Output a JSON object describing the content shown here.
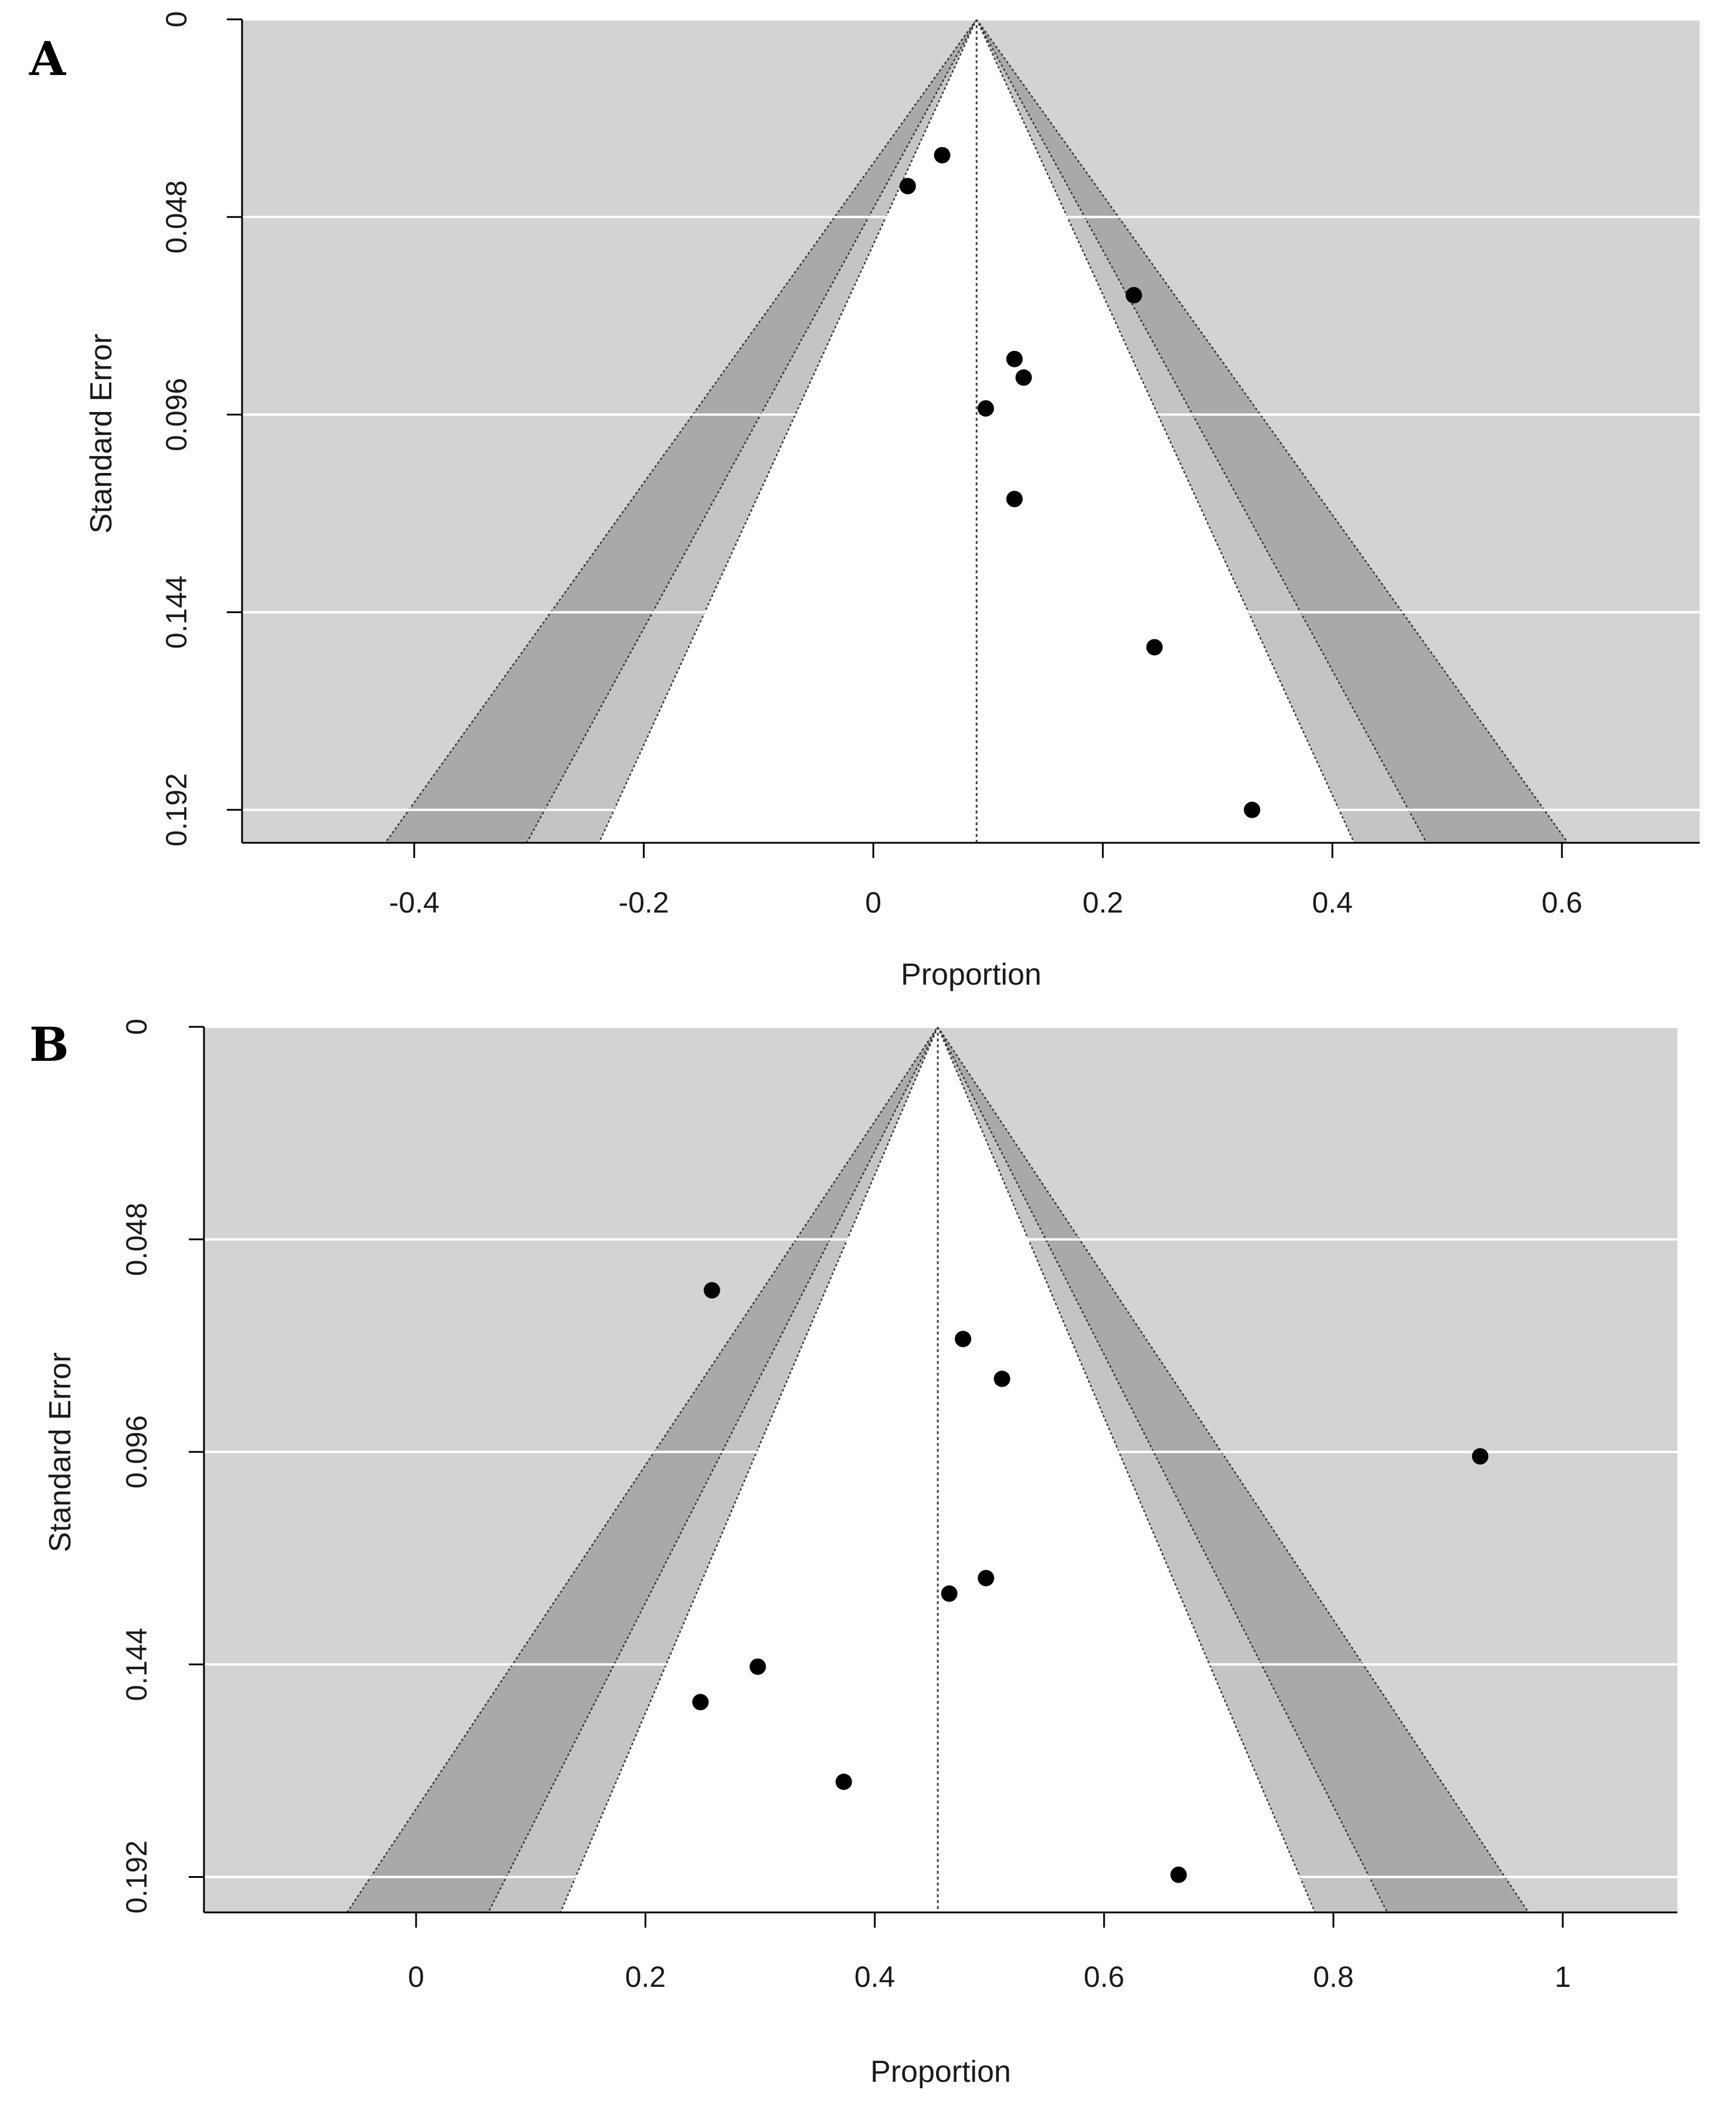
{
  "colors": {
    "background": "#d3d3d3",
    "region_outer": "#a9a9a9",
    "region_middle": "#c4c4c4",
    "region_inner": "#ffffff",
    "gridline": "#ffffff",
    "point": "#000000",
    "axis": "#000000"
  },
  "chart_data": [
    {
      "panel_label": "A",
      "type": "scatter",
      "subtype": "contour-enhanced funnel plot",
      "xlabel": "Proportion",
      "ylabel": "Standard Error",
      "xlim": [
        -0.55,
        0.72
      ],
      "ylim": [
        0.2,
        0
      ],
      "x_ticks": [
        -0.4,
        -0.2,
        0,
        0.2,
        0.4,
        0.6
      ],
      "x_tick_labels": [
        "-0.4",
        "-0.2",
        "0",
        "0.2",
        "0.4",
        "0.6"
      ],
      "y_ticks": [
        0,
        0.048,
        0.096,
        0.144,
        0.192
      ],
      "y_tick_labels": [
        "0",
        "0.048",
        "0.096",
        "0.144",
        "0.192"
      ],
      "grid": true,
      "pooled_estimate": 0.09,
      "contour_levels_z": [
        1.645,
        1.96,
        2.576
      ],
      "points": [
        {
          "x": 0.06,
          "y": 0.033
        },
        {
          "x": 0.03,
          "y": 0.0405
        },
        {
          "x": 0.227,
          "y": 0.067
        },
        {
          "x": 0.123,
          "y": 0.0825
        },
        {
          "x": 0.131,
          "y": 0.087
        },
        {
          "x": 0.098,
          "y": 0.0945
        },
        {
          "x": 0.123,
          "y": 0.1165
        },
        {
          "x": 0.245,
          "y": 0.1525
        },
        {
          "x": 0.33,
          "y": 0.192
        }
      ]
    },
    {
      "panel_label": "B",
      "type": "scatter",
      "subtype": "contour-enhanced funnel plot",
      "xlabel": "Proportion",
      "ylabel": "Standard Error",
      "xlim": [
        -0.185,
        1.1
      ],
      "ylim": [
        0.2,
        0
      ],
      "x_ticks": [
        0,
        0.2,
        0.4,
        0.6,
        0.8,
        1
      ],
      "x_tick_labels": [
        "0",
        "0.2",
        "0.4",
        "0.6",
        "0.8",
        "1"
      ],
      "y_ticks": [
        0,
        0.048,
        0.096,
        0.144,
        0.192
      ],
      "y_tick_labels": [
        "0",
        "0.048",
        "0.096",
        "0.144",
        "0.192"
      ],
      "grid": true,
      "pooled_estimate": 0.455,
      "contour_levels_z": [
        1.645,
        1.96,
        2.576
      ],
      "points": [
        {
          "x": 0.258,
          "y": 0.0595
        },
        {
          "x": 0.477,
          "y": 0.0705
        },
        {
          "x": 0.511,
          "y": 0.0795
        },
        {
          "x": 0.928,
          "y": 0.097
        },
        {
          "x": 0.497,
          "y": 0.1245
        },
        {
          "x": 0.465,
          "y": 0.128
        },
        {
          "x": 0.298,
          "y": 0.1445
        },
        {
          "x": 0.248,
          "y": 0.1525
        },
        {
          "x": 0.373,
          "y": 0.1705
        },
        {
          "x": 0.665,
          "y": 0.1915
        }
      ]
    }
  ]
}
